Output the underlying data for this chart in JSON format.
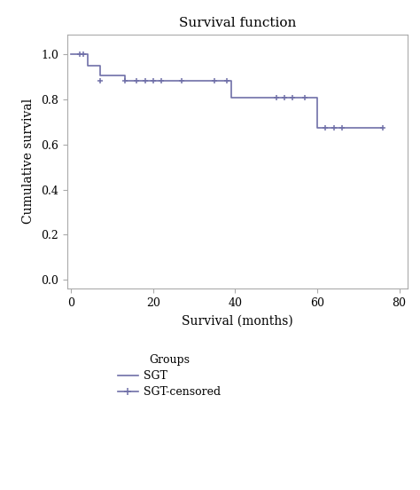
{
  "title": "Survival function",
  "xlabel": "Survival (months)",
  "ylabel": "Cumulative survival",
  "legend_title": "Groups",
  "legend_labels": [
    "SGT",
    "SGT-censored"
  ],
  "color": "#7070a8",
  "xlim": [
    -1,
    82
  ],
  "ylim": [
    -0.04,
    1.09
  ],
  "xticks": [
    0,
    20,
    40,
    60,
    80
  ],
  "yticks": [
    0.0,
    0.2,
    0.4,
    0.6,
    0.8,
    1.0
  ],
  "step_times": [
    0,
    1,
    4,
    7,
    13,
    38,
    39,
    50,
    57,
    60,
    76
  ],
  "step_values": [
    1.0,
    1.0,
    0.952,
    0.909,
    0.882,
    0.882,
    0.808,
    0.808,
    0.808,
    0.673,
    0.673
  ],
  "censored_times": [
    2,
    3,
    7,
    13,
    16,
    18,
    20,
    22,
    27,
    35,
    38,
    50,
    52,
    54,
    57,
    62,
    64,
    66,
    76
  ],
  "censored_values": [
    1.0,
    1.0,
    0.882,
    0.882,
    0.882,
    0.882,
    0.882,
    0.882,
    0.882,
    0.882,
    0.882,
    0.808,
    0.808,
    0.808,
    0.808,
    0.673,
    0.673,
    0.673,
    0.673
  ],
  "background_color": "#ffffff",
  "spine_color": "#aaaaaa",
  "figsize": [
    4.74,
    5.52
  ],
  "dpi": 100,
  "title_fontsize": 11,
  "label_fontsize": 10,
  "tick_fontsize": 9,
  "legend_fontsize": 9
}
